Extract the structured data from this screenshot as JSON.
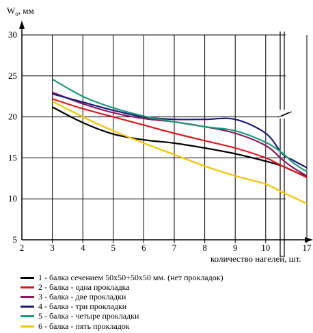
{
  "chart_data": {
    "type": "line",
    "ylabel": "W",
    "ylabel_sub": "o",
    "ylabel_unit": ", мм",
    "xlabel": "количество нагелей, шт.",
    "ylim": [
      5,
      30
    ],
    "y_ticks": [
      "5",
      "10",
      "15",
      "20",
      "25",
      "30"
    ],
    "x_ticks": [
      "2",
      "3",
      "4",
      "5",
      "6",
      "7",
      "8",
      "9",
      "10",
      "17"
    ],
    "series": [
      {
        "name": "1 - балка   сечением 50х50+50х50 мм. (нет прокладок)",
        "color": "#000000",
        "x": [
          3,
          4,
          5,
          6,
          7,
          8,
          9,
          10,
          10.6,
          11,
          11.5
        ],
        "y": [
          21.2,
          19.3,
          17.9,
          17.2,
          16.8,
          16.2,
          15.5,
          14.6,
          14.0,
          13.4,
          12.7
        ]
      },
      {
        "name": "2 - балка - одна прокладка",
        "color": "#e0161e",
        "x": [
          3,
          4,
          5,
          6,
          7,
          8,
          9,
          10,
          10.6,
          11,
          11.5
        ],
        "y": [
          22.2,
          21.0,
          20.0,
          19.0,
          18.0,
          17.1,
          16.2,
          15.0,
          14.0,
          13.4,
          12.6
        ]
      },
      {
        "name": "3 - балка - две прокладки",
        "color": "#8b1a5e",
        "x": [
          3,
          4,
          5,
          6,
          7,
          8,
          9,
          10,
          10.6,
          11,
          11.5
        ],
        "y": [
          23.0,
          21.6,
          20.5,
          19.8,
          19.4,
          18.8,
          18.0,
          16.5,
          14.8,
          13.8,
          12.8
        ]
      },
      {
        "name": "4 - балка - три прокладки",
        "color": "#1a1a7a",
        "x": [
          3,
          4,
          5,
          6,
          7,
          8,
          9,
          10,
          10.6,
          11,
          11.5
        ],
        "y": [
          22.8,
          21.8,
          20.8,
          20.0,
          19.7,
          19.7,
          19.7,
          18.0,
          15.5,
          14.7,
          13.8
        ]
      },
      {
        "name": "5 - балка - четыре прокладки",
        "color": "#1a9a7a",
        "x": [
          3,
          4,
          5,
          6,
          7,
          8,
          9,
          10,
          10.6,
          11,
          11.5
        ],
        "y": [
          24.6,
          22.5,
          21.1,
          20.1,
          19.4,
          18.8,
          18.3,
          16.9,
          15.6,
          14.4,
          13.3
        ]
      },
      {
        "name": "6 - балка - пять прокладок",
        "color": "#f5c400",
        "x": [
          3,
          4,
          5,
          6,
          7,
          8,
          9,
          10,
          10.6,
          11,
          11.5
        ],
        "y": [
          21.9,
          20.0,
          18.3,
          16.8,
          15.4,
          14.0,
          12.8,
          11.8,
          10.8,
          10.2,
          9.4
        ]
      }
    ]
  }
}
